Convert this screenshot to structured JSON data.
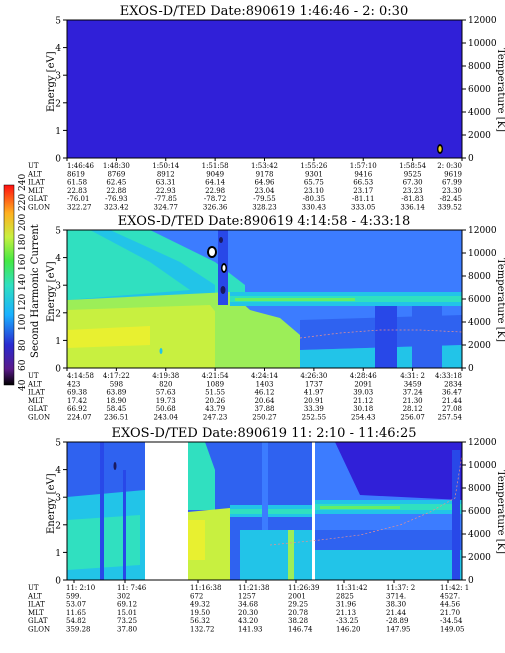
{
  "colors": {
    "background": "#3020d8",
    "deep_blue": "#2848e8",
    "mid_blue": "#3c7cff",
    "cyan": "#22c4e8",
    "aqua": "#30e0c0",
    "green": "#66ee66",
    "yellow_green": "#c8f040",
    "yellow": "#f4f020"
  },
  "colorbar": {
    "title": "Second Harmonic Current",
    "ticks": [
      "40",
      "60",
      "80",
      "100",
      "120",
      "140",
      "160",
      "180",
      "200",
      "220",
      "240"
    ]
  },
  "chart_data": [
    {
      "type": "heatmap",
      "title": "EXOS-D/TED   Date:890619   1:46:46 - 2: 0:30",
      "ylabel": "Energy [eV]",
      "y2label": "Temperature [K]",
      "ylim": [
        0,
        5
      ],
      "y2lim": [
        0,
        12000
      ],
      "yticks": [
        "0",
        "1",
        "2",
        "3",
        "4",
        "5"
      ],
      "y2ticks": [
        "0",
        "2000",
        "4000",
        "6000",
        "8000",
        "10000",
        "12000"
      ],
      "ephemeris": [
        {
          "label": "UT",
          "values": [
            "1:46:46",
            "1:48:30",
            "1:50:14",
            "1:51:58",
            "1:53:42",
            "1:55:26",
            "1:57:10",
            "1:58:54",
            "2: 0:30"
          ]
        },
        {
          "label": "ALT",
          "values": [
            "8619",
            "8769",
            "8912",
            "9049",
            "9178",
            "9301",
            "9416",
            "9525",
            "9619"
          ]
        },
        {
          "label": "ILAT",
          "values": [
            "61.58",
            "62.45",
            "63.31",
            "64.14",
            "64.96",
            "65.75",
            "66.53",
            "67.30",
            "67.99"
          ]
        },
        {
          "label": "MLT",
          "values": [
            "22.83",
            "22.88",
            "22.93",
            "22.98",
            "23.04",
            "23.10",
            "23.17",
            "23.23",
            "23.30"
          ]
        },
        {
          "label": "GLAT",
          "values": [
            "-76.01",
            "-76.93",
            "-77.85",
            "-78.72",
            "-79.55",
            "-80.35",
            "-81.11",
            "-81.83",
            "-82.45"
          ]
        },
        {
          "label": "GLON",
          "values": [
            "322.27",
            "323.42",
            "324.77",
            "326.36",
            "328.23",
            "330.43",
            "333.05",
            "336.14",
            "339.52"
          ]
        }
      ]
    },
    {
      "type": "heatmap",
      "title": "EXOS-D/TED   Date:890619   4:14:58 - 4:33:18",
      "ylabel": "Energy [eV]",
      "y2label": "Temperature [K]",
      "ylim": [
        0,
        5
      ],
      "y2lim": [
        0,
        12000
      ],
      "yticks": [
        "0",
        "1",
        "2",
        "3",
        "4",
        "5"
      ],
      "y2ticks": [
        "0",
        "2000",
        "4000",
        "6000",
        "8000",
        "10000",
        "12000"
      ],
      "ephemeris": [
        {
          "label": "UT",
          "values": [
            "4:14:58",
            "4:17:22",
            "4:19:38",
            "4:21:54",
            "4:24:14",
            "4:26:30",
            "4:28:46",
            "4:31: 2",
            "4:33:18"
          ]
        },
        {
          "label": "ALT",
          "values": [
            "423",
            "598",
            "820",
            "1089",
            "1403",
            "1737",
            "2091",
            "3459",
            "2834"
          ]
        },
        {
          "label": "ILAT",
          "values": [
            "69.38",
            "63.89",
            "57.63",
            "51.55",
            "46.12",
            "41.97",
            "39.03",
            "37.24",
            "36.47"
          ]
        },
        {
          "label": "MLT",
          "values": [
            "17.42",
            "18.90",
            "19.73",
            "20.26",
            "20.64",
            "20.91",
            "21.12",
            "21.30",
            "21.44"
          ]
        },
        {
          "label": "GLAT",
          "values": [
            "66.92",
            "58.45",
            "50.68",
            "43.79",
            "37.88",
            "33.39",
            "30.18",
            "28.12",
            "27.08"
          ]
        },
        {
          "label": "GLON",
          "values": [
            "224.07",
            "236.51",
            "243.04",
            "247.23",
            "250.27",
            "252.55",
            "254.43",
            "256.07",
            "257.54"
          ]
        }
      ]
    },
    {
      "type": "heatmap",
      "title": "EXOS-D/TED   Date:890619   11: 2:10 - 11:46:25",
      "ylabel": "Energy [eV]",
      "y2label": "Temperature [K]",
      "ylim": [
        0,
        5
      ],
      "y2lim": [
        0,
        12000
      ],
      "yticks": [
        "0",
        "1",
        "2",
        "3",
        "4",
        "5"
      ],
      "y2ticks": [
        "0",
        "2000",
        "4000",
        "6000",
        "8000",
        "10000",
        "12000"
      ],
      "ephemeris": [
        {
          "label": "UT",
          "values": [
            "11: 2:10",
            "11: 7:46",
            "",
            "11:16:38",
            "11:21:38",
            "11:26:39",
            "11:31:42",
            "11:37: 2",
            "11:42: 1"
          ]
        },
        {
          "label": "ALT",
          "values": [
            "599.",
            "302",
            "",
            "672",
            "1257",
            "2001",
            "2825",
            "3714.",
            "4527."
          ]
        },
        {
          "label": "ILAT",
          "values": [
            "53.07",
            "69.12",
            "",
            "49.32",
            "34.68",
            "29.25",
            "31.96",
            "38.30",
            "44.56"
          ]
        },
        {
          "label": "MLT",
          "values": [
            "11.65",
            "15.01",
            "",
            "19.50",
            "20.30",
            "20.78",
            "21.13",
            "21.44",
            "21.70"
          ]
        },
        {
          "label": "GLAT",
          "values": [
            "54.82",
            "73.25",
            "",
            "56.32",
            "43.20",
            "38.28",
            "-33.25",
            "-28.89",
            "-34.54"
          ]
        },
        {
          "label": "GLON",
          "values": [
            "359.28",
            "37.80",
            "",
            "132.72",
            "141.93",
            "146.74",
            "146.20",
            "147.95",
            "149.05"
          ]
        }
      ]
    }
  ]
}
